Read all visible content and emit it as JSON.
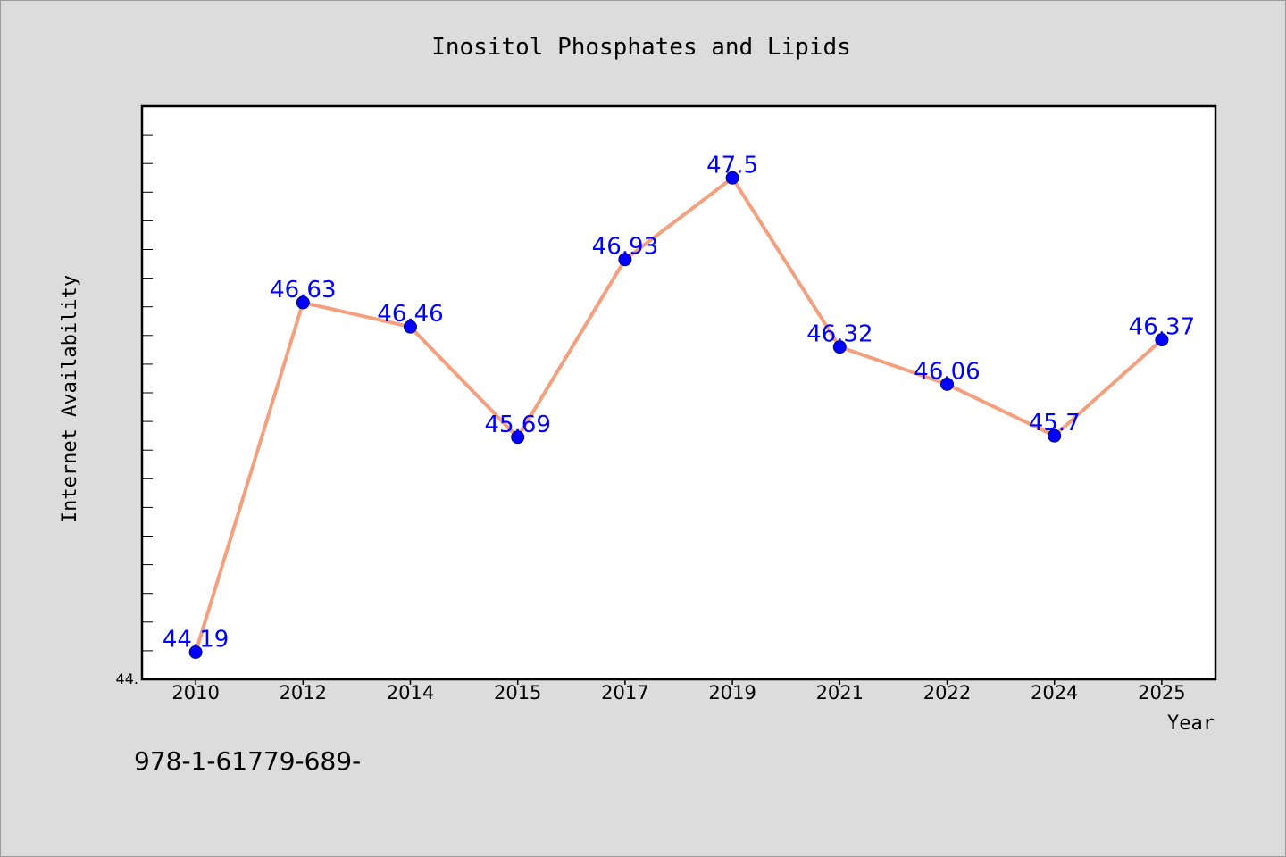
{
  "footer_text": "978-1-61779-689-",
  "colors": {
    "background": "#dcdcdc",
    "plot_background": "#ffffff",
    "line": "#f4a07e",
    "marker": "#0000ff",
    "data_label": "#0000ff"
  },
  "chart_data": {
    "type": "line",
    "title": "Inositol Phosphates and Lipids",
    "xlabel": "Year",
    "ylabel": "Internet Availability",
    "categories": [
      "2010",
      "2012",
      "2014",
      "2015",
      "2017",
      "2019",
      "2021",
      "2022",
      "2024",
      "2025"
    ],
    "series": [
      {
        "values": [
          44.19,
          46.63,
          46.46,
          45.69,
          46.93,
          47.5,
          46.32,
          46.06,
          45.7,
          46.37
        ]
      }
    ],
    "data_labels": true,
    "ylim": [
      44,
      48
    ],
    "y_tick_label": "44.",
    "grid": false,
    "legend": "none"
  }
}
